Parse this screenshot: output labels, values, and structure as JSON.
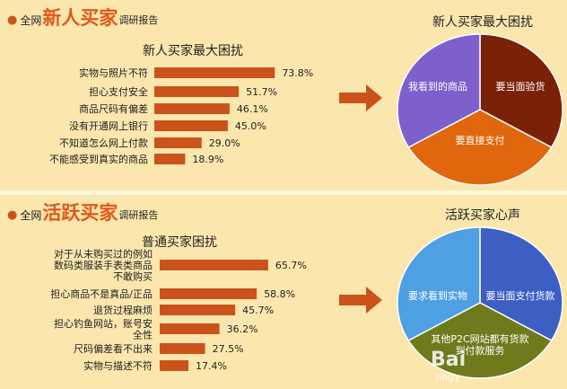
{
  "top_section": {
    "heading_prefix": "全网",
    "heading_highlight": "新人买家",
    "heading_suffix": "调研报告",
    "chart_title": "新人买家最大困扰",
    "pie_title": "新人买家最大困扰"
  },
  "bottom_section": {
    "heading_prefix": "全网",
    "heading_highlight": "活跃买家",
    "heading_suffix": "调研报告",
    "chart_title": "普通买家困扰",
    "pie_title": "活跃买家心声"
  },
  "watermark": {
    "text": "Bai",
    "sub": "jingy"
  },
  "colors": {
    "bar": "#c9531a",
    "accent": "#e0591a",
    "arrow": "#c9531a"
  },
  "chart_data": [
    {
      "type": "bar",
      "orientation": "horizontal",
      "title": "新人买家最大困扰",
      "categories": [
        "实物与照片不符",
        "担心支付安全",
        "商品尺码有偏差",
        "没有开通网上银行",
        "不知道怎么网上付款",
        "不能感受到真实的商品"
      ],
      "values": [
        73.8,
        51.7,
        46.1,
        45.0,
        29.0,
        18.9
      ],
      "value_labels": [
        "73.8%",
        "51.7%",
        "46.1%",
        "45.0%",
        "29.0%",
        "18.9%"
      ],
      "unit": "%",
      "xlim": [
        0,
        100
      ]
    },
    {
      "type": "pie",
      "title": "新人买家最大困扰",
      "labels": [
        "我看到的商品",
        "要当面验货",
        "要直接支付"
      ],
      "values": [
        33.3,
        33.3,
        33.3
      ],
      "colors": [
        "#7a2208",
        "#e0670e",
        "#7d60cc"
      ]
    },
    {
      "type": "bar",
      "orientation": "horizontal",
      "title": "普通买家困扰",
      "categories": [
        "对于从未购买过的例如数码类服装手表类商品不敢购买",
        "担心商品不是真品/正品",
        "退货过程麻烦",
        "担心钓鱼网站，账号安全性",
        "尺码偏差看不出来",
        "实物与描述不符"
      ],
      "category_lines": [
        [
          "对于从未购买过的例如",
          "数码类服装手表类商品",
          "不敢购买"
        ],
        [
          "担心商品不是真品/正品"
        ],
        [
          "退货过程麻烦"
        ],
        [
          "担心钓鱼网站，账号安",
          "全性"
        ],
        [
          "尺码偏差看不出来"
        ],
        [
          "实物与描述不符"
        ]
      ],
      "values": [
        65.7,
        58.8,
        45.7,
        36.2,
        27.5,
        17.4
      ],
      "value_labels": [
        "65.7%",
        "58.8%",
        "45.7%",
        "36.2%",
        "27.5%",
        "17.4%"
      ],
      "unit": "%",
      "xlim": [
        0,
        100
      ]
    },
    {
      "type": "pie",
      "title": "活跃买家心声",
      "labels": [
        "要求看到实物",
        "要当面支付货款",
        "其他P2C网站都有货款到付款服务"
      ],
      "label_lines": [
        [
          "要求看到实物"
        ],
        [
          "要当面支付货款"
        ],
        [
          "其他P2C网站都有货款",
          "到付款服务"
        ]
      ],
      "values": [
        33.3,
        33.3,
        33.3
      ],
      "colors": [
        "#3d5fc4",
        "#6e7a1c",
        "#4f9fe3"
      ]
    }
  ]
}
